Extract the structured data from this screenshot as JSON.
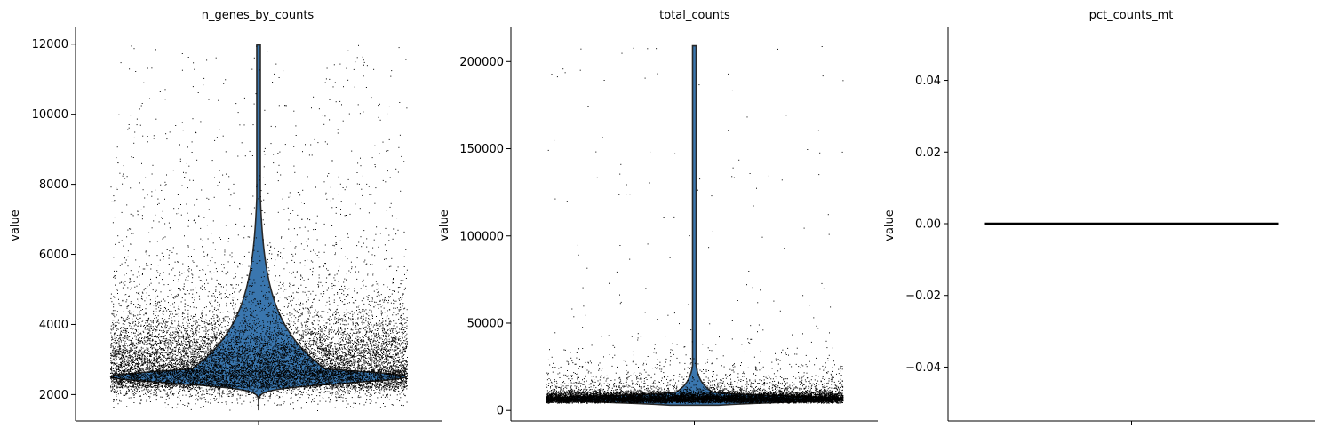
{
  "figure": {
    "type": "violin",
    "colors": {
      "violin_fill": "#3a76ae",
      "violin_edge": "#2a2a2a",
      "points": "#000000",
      "axis": "#000000"
    }
  },
  "chart_data": [
    {
      "type": "violin",
      "title": "n_genes_by_counts",
      "ylabel": "value",
      "xlabel": "",
      "ylim": [
        1250,
        12500
      ],
      "yticks": [
        2000,
        4000,
        6000,
        8000,
        10000,
        12000
      ],
      "ytick_labels": [
        "2000",
        "4000",
        "6000",
        "8000",
        "10000",
        "12000"
      ],
      "distribution": {
        "min": 1550,
        "max": 11980,
        "mode": 2500,
        "median": 2900,
        "upper_tail_mode": 5000
      },
      "grid": false
    },
    {
      "type": "violin",
      "title": "total_counts",
      "ylabel": "value",
      "xlabel": "",
      "ylim": [
        -6000,
        220000
      ],
      "yticks": [
        0,
        50000,
        100000,
        150000,
        200000
      ],
      "ytick_labels": [
        "0",
        "50000",
        "100000",
        "150000",
        "200000"
      ],
      "distribution": {
        "min": 3000,
        "max": 209000,
        "mode": 6000,
        "median": 7500
      },
      "grid": false
    },
    {
      "type": "violin",
      "title": "pct_counts_mt",
      "ylabel": "value",
      "xlabel": "",
      "ylim": [
        -0.055,
        0.055
      ],
      "yticks": [
        -0.04,
        -0.02,
        0.0,
        0.02,
        0.04
      ],
      "ytick_labels": [
        "−0.04",
        "−0.02",
        "0.00",
        "0.02",
        "0.04"
      ],
      "distribution": {
        "min": 0,
        "max": 0,
        "constant_value": 0
      },
      "grid": false
    }
  ]
}
